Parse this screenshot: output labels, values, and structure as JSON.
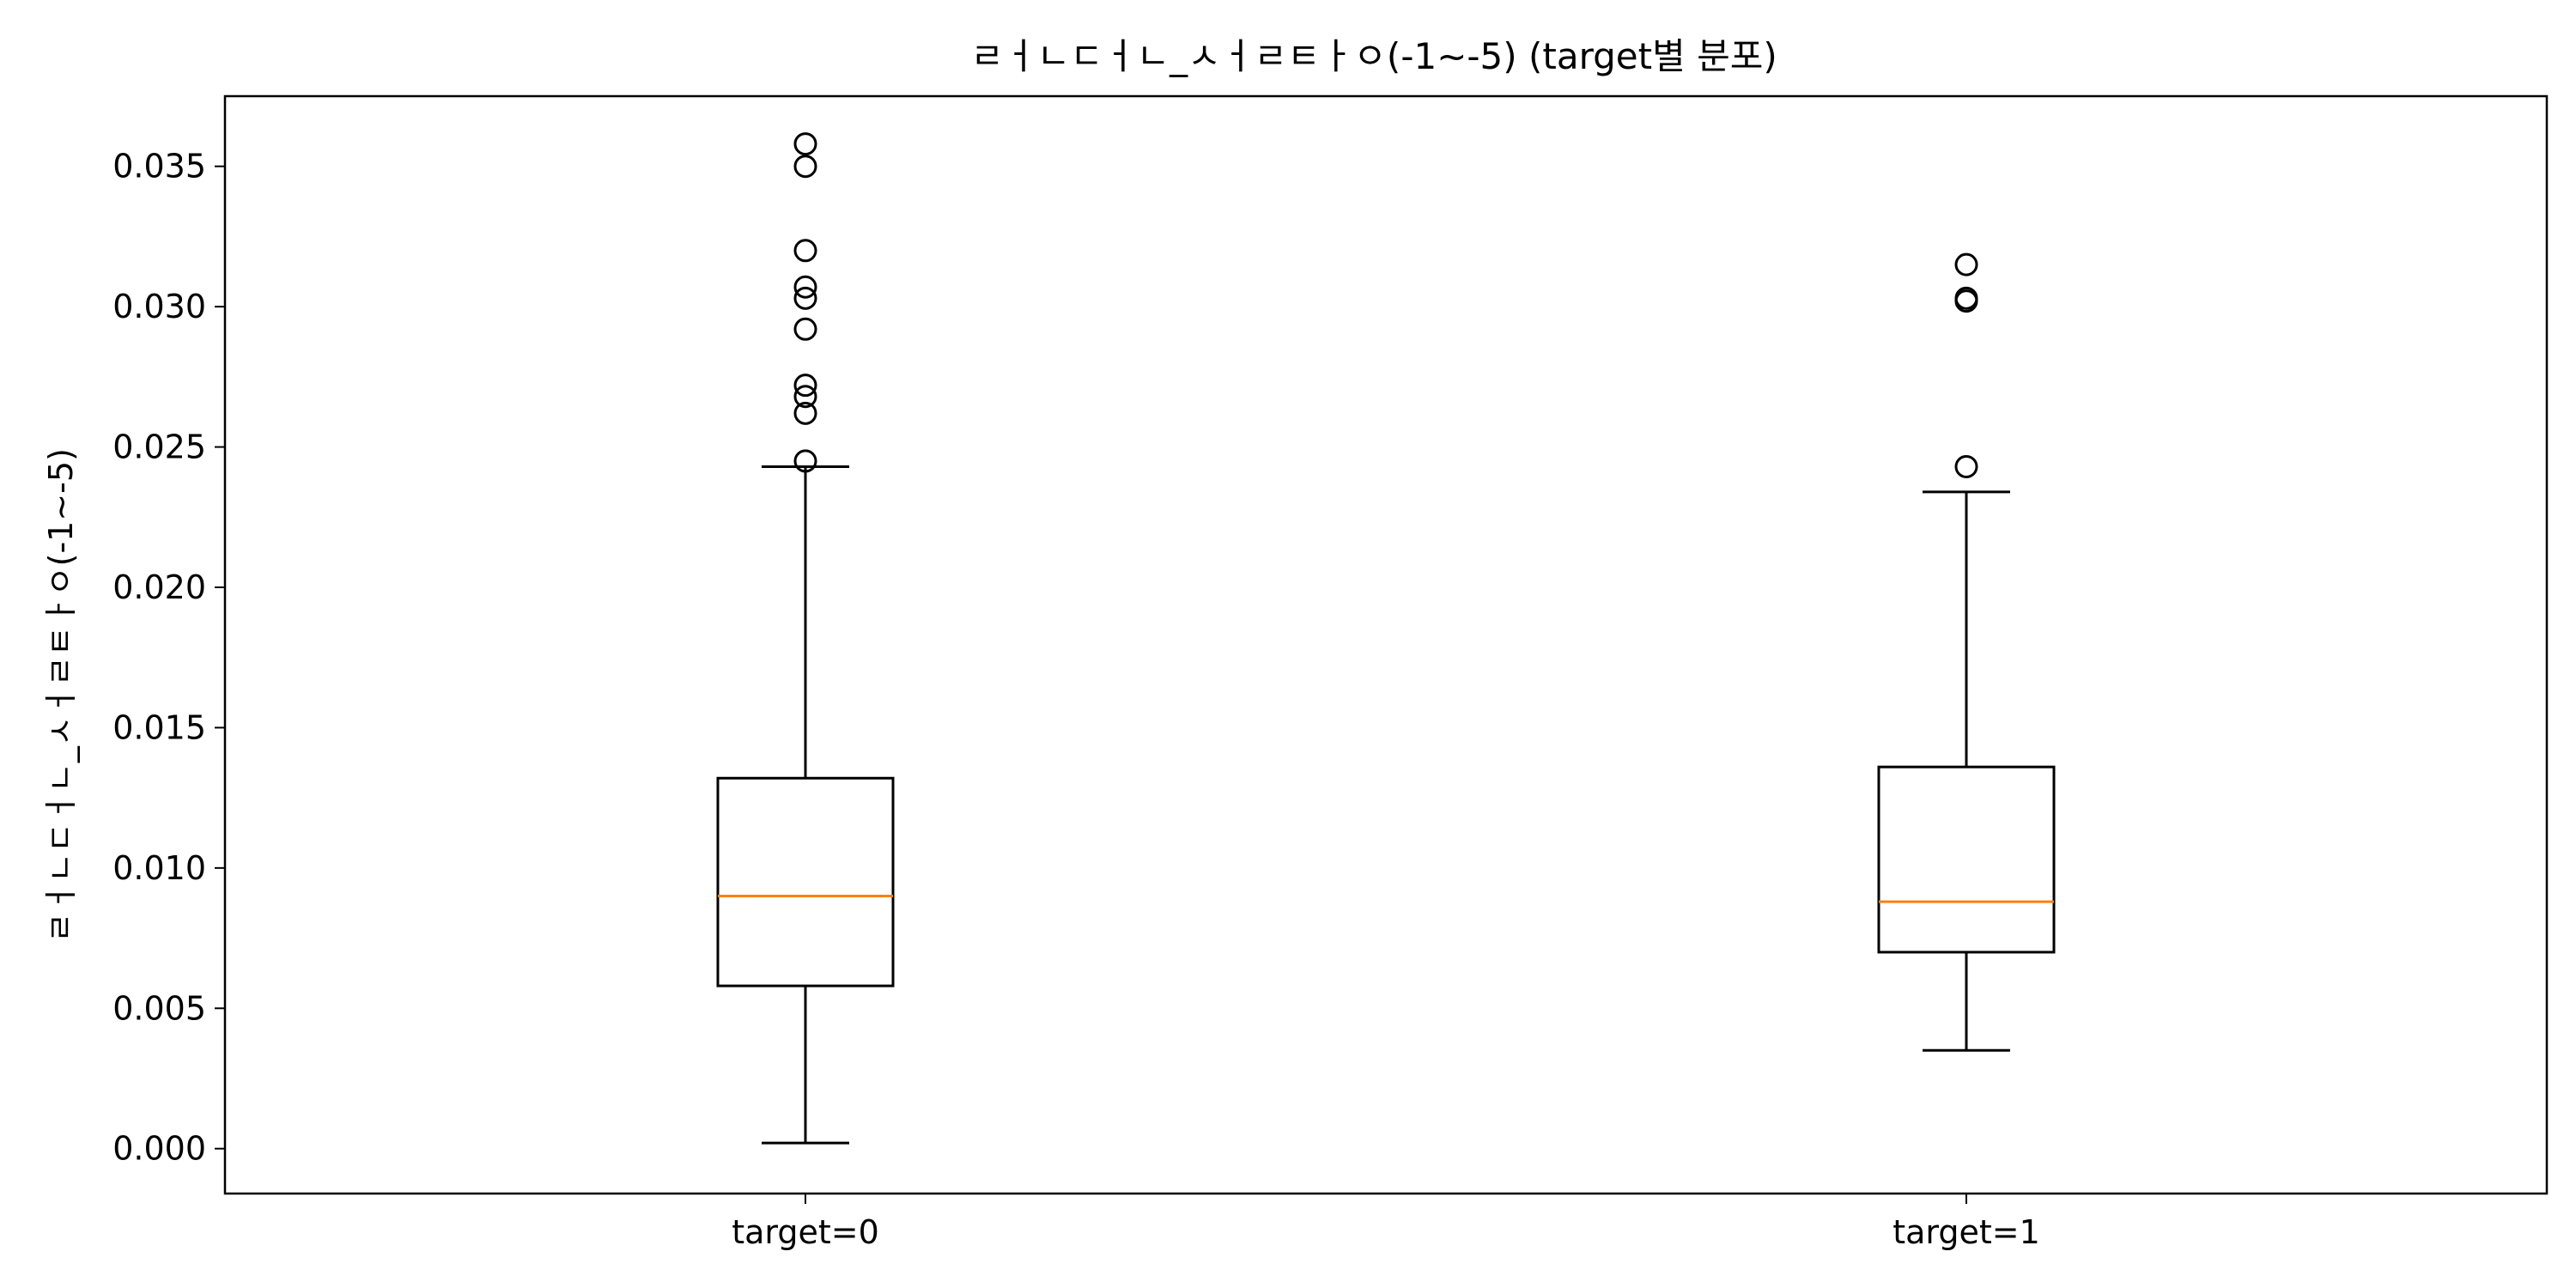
{
  "chart_data": {
    "type": "boxplot",
    "title": "ㄹㅓㄴㄷㅓㄴ_ㅅㅓㄹㅌㅏㅇ(-1~-5) (target별 분포)",
    "xlabel": "",
    "ylabel": "ㄹㅓㄴㄷㅓㄴ_ㅅㅓㄹㅌㅏㅇ(-1~-5)",
    "ylim": [
      -0.0016,
      0.0375
    ],
    "yticks": [
      "0.000",
      "0.005",
      "0.010",
      "0.015",
      "0.020",
      "0.025",
      "0.030",
      "0.035"
    ],
    "grid": false,
    "categories": [
      "target=0",
      "target=1"
    ],
    "boxes": [
      {
        "name": "target=0",
        "whisker_low": 0.0002,
        "q1": 0.0058,
        "median": 0.009,
        "q3": 0.0132,
        "whisker_high": 0.0243,
        "outliers": [
          0.0245,
          0.0262,
          0.0268,
          0.0272,
          0.0292,
          0.0303,
          0.0307,
          0.032,
          0.035,
          0.0358
        ]
      },
      {
        "name": "target=1",
        "whisker_low": 0.0035,
        "q1": 0.007,
        "median": 0.0088,
        "q3": 0.0136,
        "whisker_high": 0.0234,
        "outliers": [
          0.0243,
          0.0302,
          0.0303,
          0.0315
        ]
      }
    ],
    "colors": {
      "box": "#000000",
      "median": "#ff7f0e",
      "background": "#ffffff"
    }
  }
}
